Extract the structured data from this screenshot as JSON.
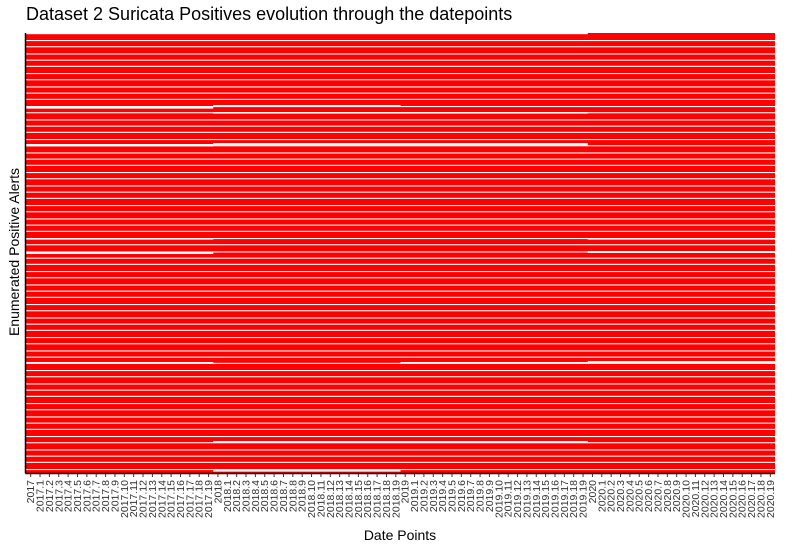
{
  "chart_data": {
    "type": "heatmap",
    "title": "Dataset 2 Suricata Positives evolution through the datepoints",
    "xlabel": "Date Points",
    "ylabel": "Enumerated  Positive Alerts",
    "x_categories": [
      "2017",
      "2017.1",
      "2017.2",
      "2017.3",
      "2017.4",
      "2017.5",
      "2017.6",
      "2017.7",
      "2017.8",
      "2017.9",
      "2017.10",
      "2017.11",
      "2017.12",
      "2017.13",
      "2017.14",
      "2017.15",
      "2017.16",
      "2017.17",
      "2017.18",
      "2017.19",
      "2018",
      "2018.1",
      "2018.2",
      "2018.3",
      "2018.4",
      "2018.5",
      "2018.6",
      "2018.7",
      "2018.8",
      "2018.9",
      "2018.10",
      "2018.11",
      "2018.12",
      "2018.13",
      "2018.14",
      "2018.15",
      "2018.16",
      "2018.17",
      "2018.18",
      "2018.19",
      "2019",
      "2019.1",
      "2019.2",
      "2019.3",
      "2019.4",
      "2019.5",
      "2019.6",
      "2019.7",
      "2019.8",
      "2019.9",
      "2019.10",
      "2019.11",
      "2019.12",
      "2019.13",
      "2019.14",
      "2019.15",
      "2019.16",
      "2019.17",
      "2019.18",
      "2019.19",
      "2020",
      "2020.1",
      "2020.2",
      "2020.3",
      "2020.4",
      "2020.5",
      "2020.6",
      "2020.7",
      "2020.8",
      "2020.9",
      "2020.10",
      "2020.11",
      "2020.12",
      "2020.13",
      "2020.14",
      "2020.15",
      "2020.16",
      "2020.17",
      "2020.18",
      "2020.19"
    ],
    "cell_color": "#ff0000",
    "background_color": "#ffffff",
    "grid": false
  }
}
